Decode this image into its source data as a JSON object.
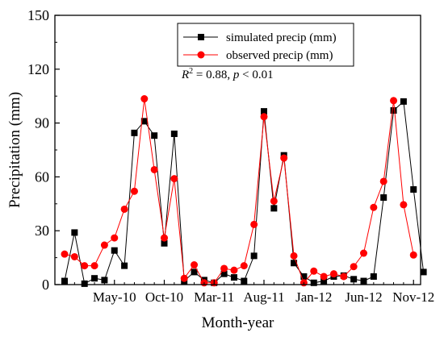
{
  "chart_data": {
    "type": "line",
    "xlabel": "Month-year",
    "ylabel": "Precipitation (mm)",
    "ylim": [
      0,
      150
    ],
    "yticks": [
      "0",
      "30",
      "60",
      "90",
      "120",
      "150"
    ],
    "xtick_labels": [
      {
        "label": "May-10",
        "index": 5
      },
      {
        "label": "Oct-10",
        "index": 10
      },
      {
        "label": "Mar-11",
        "index": 15
      },
      {
        "label": "Aug-11",
        "index": 20
      },
      {
        "label": "Jan-12",
        "index": 25
      },
      {
        "label": "Jun-12",
        "index": 30
      },
      {
        "label": "Nov-12",
        "index": 35
      }
    ],
    "x_count": 38,
    "colors": {
      "simulated": "#000000",
      "observed": "#ff0000",
      "frame": "#000000"
    },
    "legend_position": "top-right",
    "series": [
      {
        "name": "simulated precip (mm)",
        "marker": "square",
        "values": [
          2,
          29,
          0.5,
          3.5,
          2.5,
          19,
          10.5,
          84.5,
          91,
          83,
          23,
          84,
          2,
          7,
          2.5,
          1,
          6,
          4,
          2,
          16,
          96.5,
          42.5,
          72,
          12,
          4.5,
          1,
          2,
          4.5,
          5,
          3,
          2,
          4.5,
          48.5,
          97,
          102,
          53,
          7
        ]
      },
      {
        "name": "observed precip (mm)",
        "marker": "circle",
        "values": [
          17,
          15.5,
          10.5,
          10.5,
          22,
          26,
          42,
          52,
          103.5,
          64,
          26,
          59,
          3.5,
          11,
          1,
          1,
          9,
          8,
          10.5,
          33.5,
          93.5,
          46.5,
          70.5,
          16,
          1,
          7.5,
          4.5,
          6,
          4.5,
          10,
          17.5,
          43,
          57.5,
          102.5,
          44.5,
          16.5
        ]
      }
    ],
    "annotation": {
      "r2_prefix": "R",
      "r2_sup": "2",
      "r2_value": " = 0.88, ",
      "p_letter": "p",
      "p_value": " < 0.01"
    }
  }
}
